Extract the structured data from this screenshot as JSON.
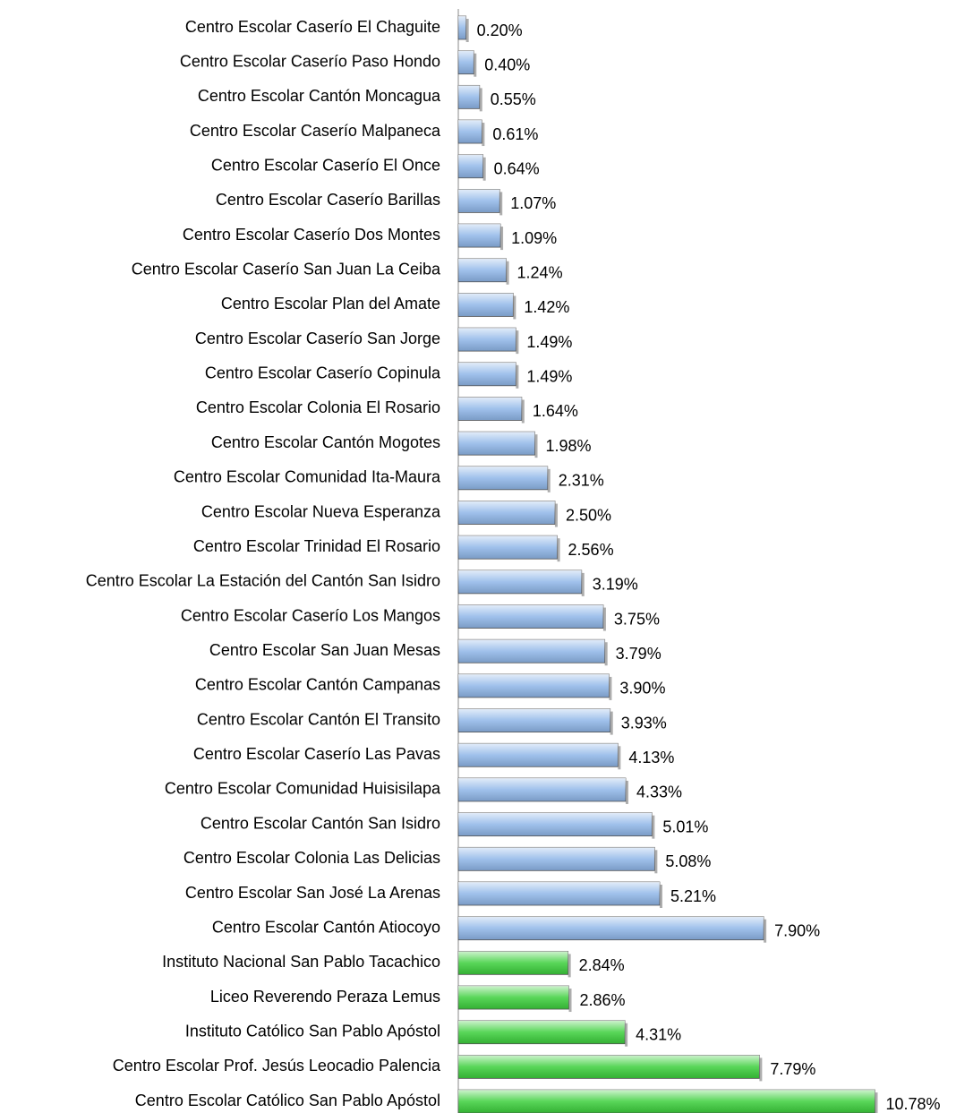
{
  "chart_data": {
    "type": "hbar",
    "categories": [
      "Centro Escolar Caserío El Chaguite",
      "Centro Escolar Caserío Paso Hondo",
      "Centro Escolar Cantón Moncagua",
      "Centro Escolar Caserío Malpaneca",
      "Centro Escolar Caserío El Once",
      "Centro Escolar Caserío Barillas",
      "Centro Escolar Caserío Dos Montes",
      "Centro Escolar Caserío San Juan La Ceiba",
      "Centro Escolar Plan del Amate",
      "Centro Escolar Caserío San Jorge",
      "Centro Escolar Caserío Copinula",
      "Centro Escolar Colonia El Rosario",
      "Centro Escolar Cantón Mogotes",
      "Centro Escolar Comunidad Ita-Maura",
      "Centro Escolar Nueva Esperanza",
      "Centro Escolar Trinidad El Rosario",
      "Centro Escolar La Estación del Cantón San Isidro",
      "Centro Escolar Caserío Los Mangos",
      "Centro Escolar San Juan Mesas",
      "Centro Escolar Cantón Campanas",
      "Centro Escolar Cantón El Transito",
      "Centro Escolar Caserío Las Pavas",
      "Centro Escolar Comunidad Huisisilapa",
      "Centro Escolar Cantón San Isidro",
      "Centro Escolar Colonia Las Delicias",
      "Centro Escolar San José La Arenas",
      "Centro Escolar Cantón Atiocoyo",
      "Instituto Nacional San Pablo Tacachico",
      "Liceo Reverendo Peraza Lemus",
      "Instituto Católico San Pablo Apóstol",
      "Centro Escolar Prof. Jesús Leocadio Palencia",
      "Centro Escolar Católico San Pablo Apóstol"
    ],
    "values": [
      0.2,
      0.4,
      0.55,
      0.61,
      0.64,
      1.07,
      1.09,
      1.24,
      1.42,
      1.49,
      1.49,
      1.64,
      1.98,
      2.31,
      2.5,
      2.56,
      3.19,
      3.75,
      3.79,
      3.9,
      3.93,
      4.13,
      4.33,
      5.01,
      5.08,
      5.21,
      7.9,
      2.84,
      2.86,
      4.31,
      7.79,
      10.78
    ],
    "value_labels": [
      "0.20%",
      "0.40%",
      "0.55%",
      "0.61%",
      "0.64%",
      "1.07%",
      "1.09%",
      "1.24%",
      "1.42%",
      "1.49%",
      "1.49%",
      "1.64%",
      "1.98%",
      "2.31%",
      "2.50%",
      "2.56%",
      "3.19%",
      "3.75%",
      "3.79%",
      "3.90%",
      "3.93%",
      "4.13%",
      "4.33%",
      "5.01%",
      "5.08%",
      "5.21%",
      "7.90%",
      "2.84%",
      "2.86%",
      "4.31%",
      "7.79%",
      "10.78%"
    ],
    "colors": [
      "#8fb6e8",
      "#8fb6e8",
      "#8fb6e8",
      "#8fb6e8",
      "#8fb6e8",
      "#8fb6e8",
      "#8fb6e8",
      "#8fb6e8",
      "#8fb6e8",
      "#8fb6e8",
      "#8fb6e8",
      "#8fb6e8",
      "#8fb6e8",
      "#8fb6e8",
      "#8fb6e8",
      "#8fb6e8",
      "#8fb6e8",
      "#8fb6e8",
      "#8fb6e8",
      "#8fb6e8",
      "#8fb6e8",
      "#8fb6e8",
      "#8fb6e8",
      "#8fb6e8",
      "#8fb6e8",
      "#8fb6e8",
      "#8fb6e8",
      "#3ccf3c",
      "#3ccf3c",
      "#3ccf3c",
      "#3ccf3c",
      "#3ccf3c"
    ],
    "xlim": [
      0,
      11
    ]
  }
}
